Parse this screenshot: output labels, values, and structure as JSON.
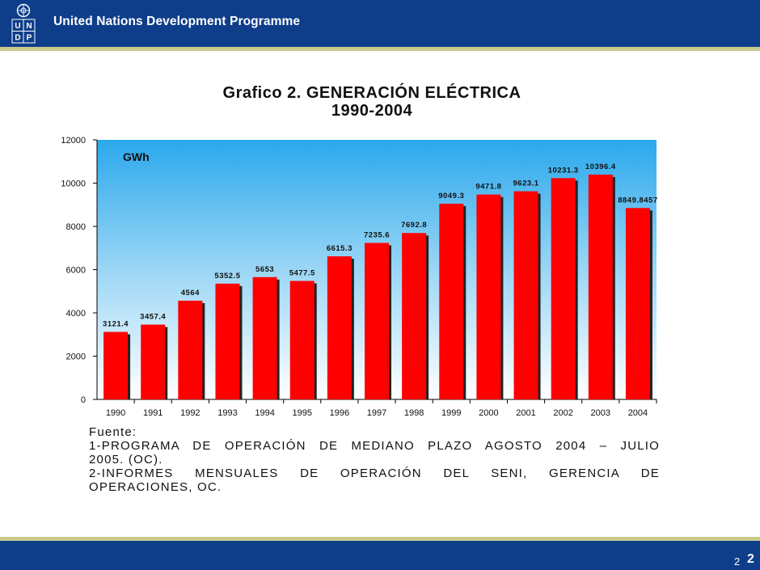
{
  "header": {
    "org_name": "United Nations Development Programme",
    "logo_letters": [
      "U",
      "N",
      "D",
      "P"
    ]
  },
  "title": {
    "line1": "Grafico 2. GENERACIÓN ELÉCTRICA",
    "line2": "1990-2004"
  },
  "chart_data": {
    "type": "bar",
    "title": "Grafico 2. GENERACIÓN ELÉCTRICA 1990-2004",
    "unit_label": "GWh",
    "categories": [
      "1990",
      "1991",
      "1992",
      "1993",
      "1994",
      "1995",
      "1996",
      "1997",
      "1998",
      "1999",
      "2000",
      "2001",
      "2002",
      "2003",
      "2004"
    ],
    "values": [
      3121.4,
      3457.4,
      4564,
      5352.5,
      5653,
      5477.5,
      6615.3,
      7235.6,
      7692.8,
      9049.3,
      9471.8,
      9623.1,
      10231.3,
      10396.4,
      8849.8457
    ],
    "value_labels": [
      "3121.4",
      "3457.4",
      "4564",
      "5352.5",
      "5653",
      "5477.5",
      "6615.3",
      "7235.6",
      "7692.8",
      "9049.3",
      "9471.8",
      "9623.1",
      "10231.3",
      "10396.4",
      "8849.8457"
    ],
    "ylim": [
      0,
      12000
    ],
    "yticks": [
      0,
      2000,
      4000,
      6000,
      8000,
      10000,
      12000
    ],
    "bar_color": "#ff0000",
    "grid": false,
    "legend": "none"
  },
  "source": {
    "heading": "Fuente:",
    "lines": [
      "1-PROGRAMA DE OPERACIÓN DE MEDIANO PLAZO AGOSTO 2004 – JULIO",
      "2005. (OC).",
      "2-INFORMES MENSUALES DE OPERACIÓN DEL SENI, GERENCIA DE",
      "OPERACIONES, OC."
    ]
  },
  "footer": {
    "page_small": "2",
    "page": "2"
  }
}
